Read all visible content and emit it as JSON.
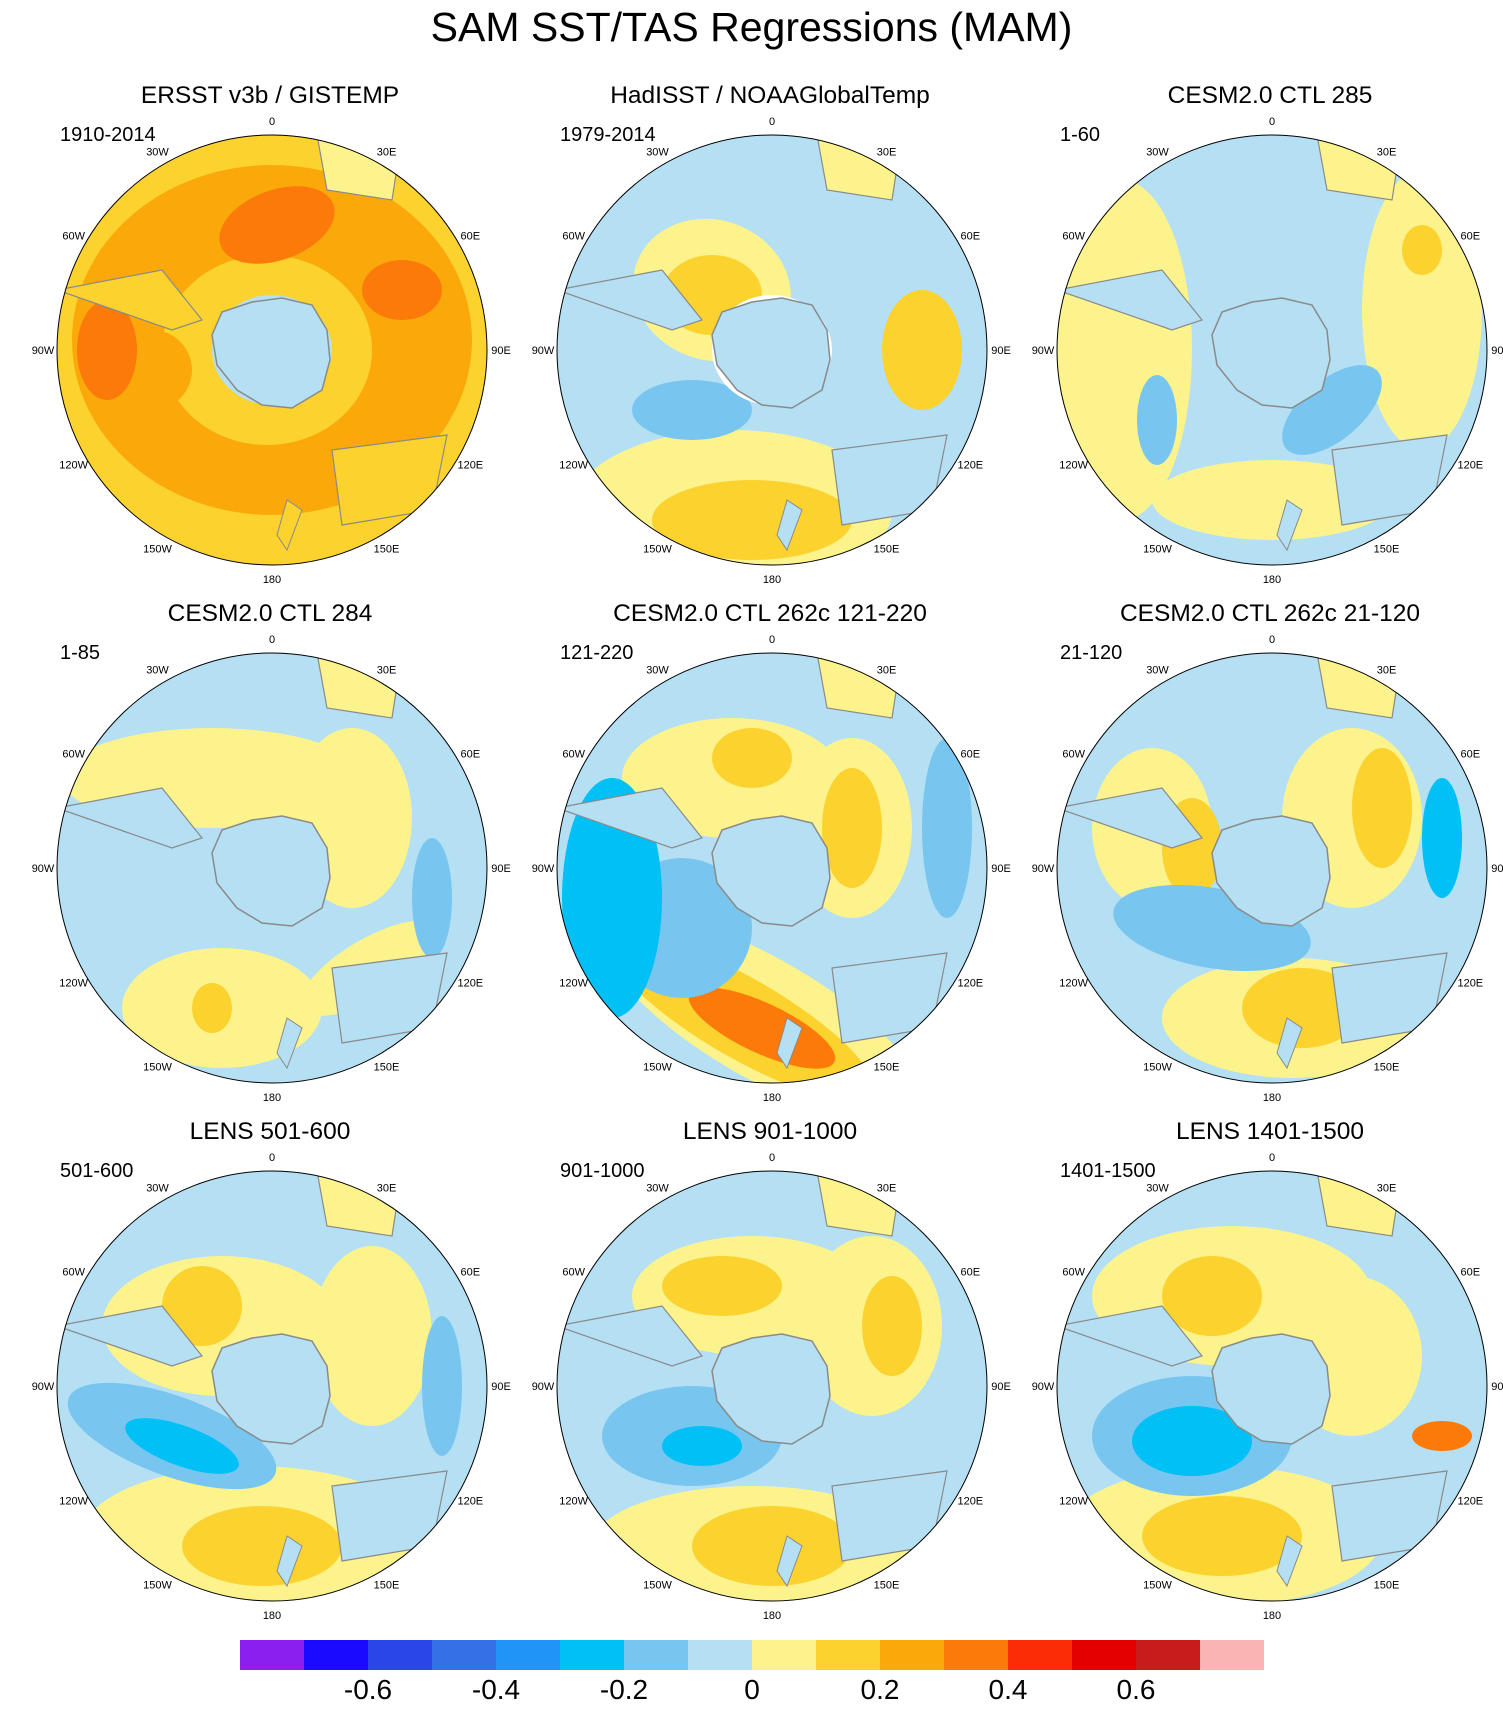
{
  "title": "SAM SST/TAS Regressions (MAM)",
  "lon_labels": {
    "0": "0",
    "30E": "30E",
    "60E": "60E",
    "90E": "90E",
    "120E": "120E",
    "150E": "150E",
    "180": "180",
    "150W": "150W",
    "120W": "120W",
    "90W": "90W",
    "60W": "60W",
    "30W": "30W"
  },
  "panels": [
    {
      "title": "ERSST v3b / GISTEMP",
      "period": "1910-2014"
    },
    {
      "title": "HadISST / NOAAGlobalTemp",
      "period": "1979-2014"
    },
    {
      "title": "CESM2.0 CTL 285",
      "period": "1-60"
    },
    {
      "title": "CESM2.0 CTL 284",
      "period": "1-85"
    },
    {
      "title": "CESM2.0 CTL 262c 121-220",
      "period": "121-220"
    },
    {
      "title": "CESM2.0 CTL 262c 21-120",
      "period": "21-120"
    },
    {
      "title": "LENS 501-600",
      "period": "501-600"
    },
    {
      "title": "LENS 901-1000",
      "period": "901-1000"
    },
    {
      "title": "LENS 1401-1500",
      "period": "1401-1500"
    }
  ],
  "colorbar": {
    "colors": [
      "#8a1ff0",
      "#1a0aff",
      "#2a45e8",
      "#3570e6",
      "#2095f7",
      "#00c0f6",
      "#78c6f0",
      "#b5dff3",
      "#fcf38c",
      "#fcd22e",
      "#fba90a",
      "#fb7a0a",
      "#fc2c07",
      "#e40000",
      "#c81b1b",
      "#fbb4b4"
    ],
    "tick_labels": [
      "-0.6",
      "-0.4",
      "-0.2",
      "0",
      "0.2",
      "0.4",
      "0.6"
    ]
  },
  "palette": {
    "light_blue": "#b5dff3",
    "mid_blue": "#78c6f0",
    "blue": "#00c0f6",
    "yellow": "#fcf38c",
    "gold": "#fcd22e",
    "orange": "#fba90a",
    "dark_orange": "#fb7a0a",
    "red": "#fc2c07",
    "land": "#b5dff3",
    "missing": "#ffffff",
    "coast": "#8a8a8a"
  }
}
